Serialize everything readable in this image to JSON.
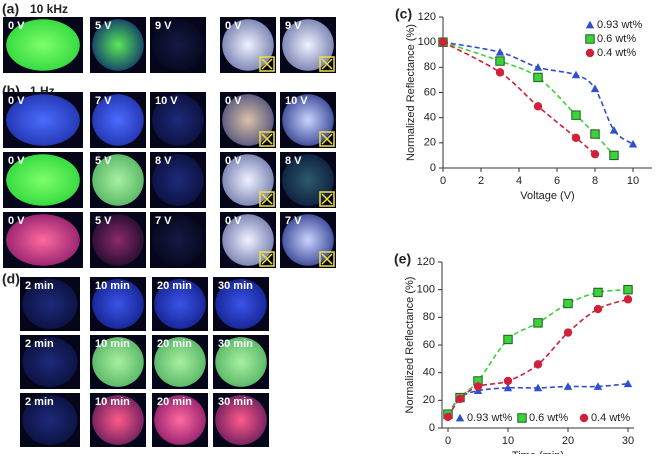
{
  "panels": [
    {
      "label": "(a)",
      "subtitle": "10 kHz",
      "rows": [
        [
          "0 V",
          "5 V",
          "9 V",
          "0 V",
          "9 V"
        ]
      ]
    },
    {
      "label": "(b)",
      "subtitle": "1 Hz",
      "rows": [
        [
          "0 V",
          "7 V",
          "10 V",
          "0 V",
          "10 V"
        ],
        [
          "0 V",
          "5 V",
          "8 V",
          "0 V",
          "8 V"
        ],
        [
          "0 V",
          "5 V",
          "7 V",
          "0 V",
          "7 V"
        ]
      ]
    },
    {
      "label": "(d)",
      "rows": [
        [
          "2 min",
          "10 min",
          "20 min",
          "30 min"
        ],
        [
          "2 min",
          "10 min",
          "20 min",
          "30 min"
        ],
        [
          "2 min",
          "10 min",
          "20 min",
          "30 min"
        ]
      ]
    }
  ],
  "chart_data": [
    {
      "type": "scatter",
      "label": "(c)",
      "x_label": "Voltage (V)",
      "y_label": "Normalized Reflectance (%)",
      "xlim": [
        0,
        11
      ],
      "xticks": [
        0,
        2,
        4,
        6,
        8,
        10
      ],
      "ylim": [
        0,
        120
      ],
      "yticks": [
        0,
        20,
        40,
        60,
        80,
        100,
        120
      ],
      "legend": "upper right",
      "series": [
        {
          "name": "0.93 wt%",
          "color": "#2f4fd0",
          "marker": "triangle",
          "x": [
            0,
            3,
            5,
            7,
            8,
            9,
            10
          ],
          "values": [
            100,
            92,
            80,
            74,
            63,
            30,
            19
          ]
        },
        {
          "name": "0.6 wt%",
          "color": "#3cd23c",
          "marker": "square",
          "x": [
            0,
            3,
            5,
            7,
            8,
            9
          ],
          "values": [
            100,
            85,
            72,
            42,
            27,
            10
          ]
        },
        {
          "name": "0.4 wt%",
          "color": "#d0203a",
          "marker": "circle",
          "x": [
            0,
            3,
            5,
            7,
            8
          ],
          "values": [
            100,
            76,
            49,
            24,
            11
          ]
        }
      ]
    },
    {
      "type": "scatter",
      "label": "(e)",
      "x_label": "Time (min)",
      "y_label": "Normalized Reflectance (%)",
      "xlim": [
        -1,
        31
      ],
      "xticks": [
        0,
        10,
        20,
        30
      ],
      "ylim": [
        0,
        120
      ],
      "yticks": [
        0,
        20,
        40,
        60,
        80,
        100,
        120
      ],
      "legend": "lower center",
      "series": [
        {
          "name": "0.93 wt%",
          "color": "#2f4fd0",
          "marker": "triangle",
          "x": [
            0,
            2,
            5,
            10,
            15,
            20,
            25,
            30
          ],
          "values": [
            10,
            22,
            27,
            29,
            29,
            30,
            30,
            32
          ]
        },
        {
          "name": "0.6 wt%",
          "color": "#3cd23c",
          "marker": "square",
          "x": [
            0,
            2,
            5,
            10,
            15,
            20,
            25,
            30
          ],
          "values": [
            10,
            22,
            34,
            64,
            76,
            90,
            98,
            100
          ]
        },
        {
          "name": "0.4 wt%",
          "color": "#d0203a",
          "marker": "circle",
          "x": [
            0,
            2,
            5,
            10,
            15,
            20,
            25,
            30
          ],
          "values": [
            8,
            21,
            30,
            34,
            46,
            69,
            86,
            93
          ]
        }
      ]
    }
  ]
}
